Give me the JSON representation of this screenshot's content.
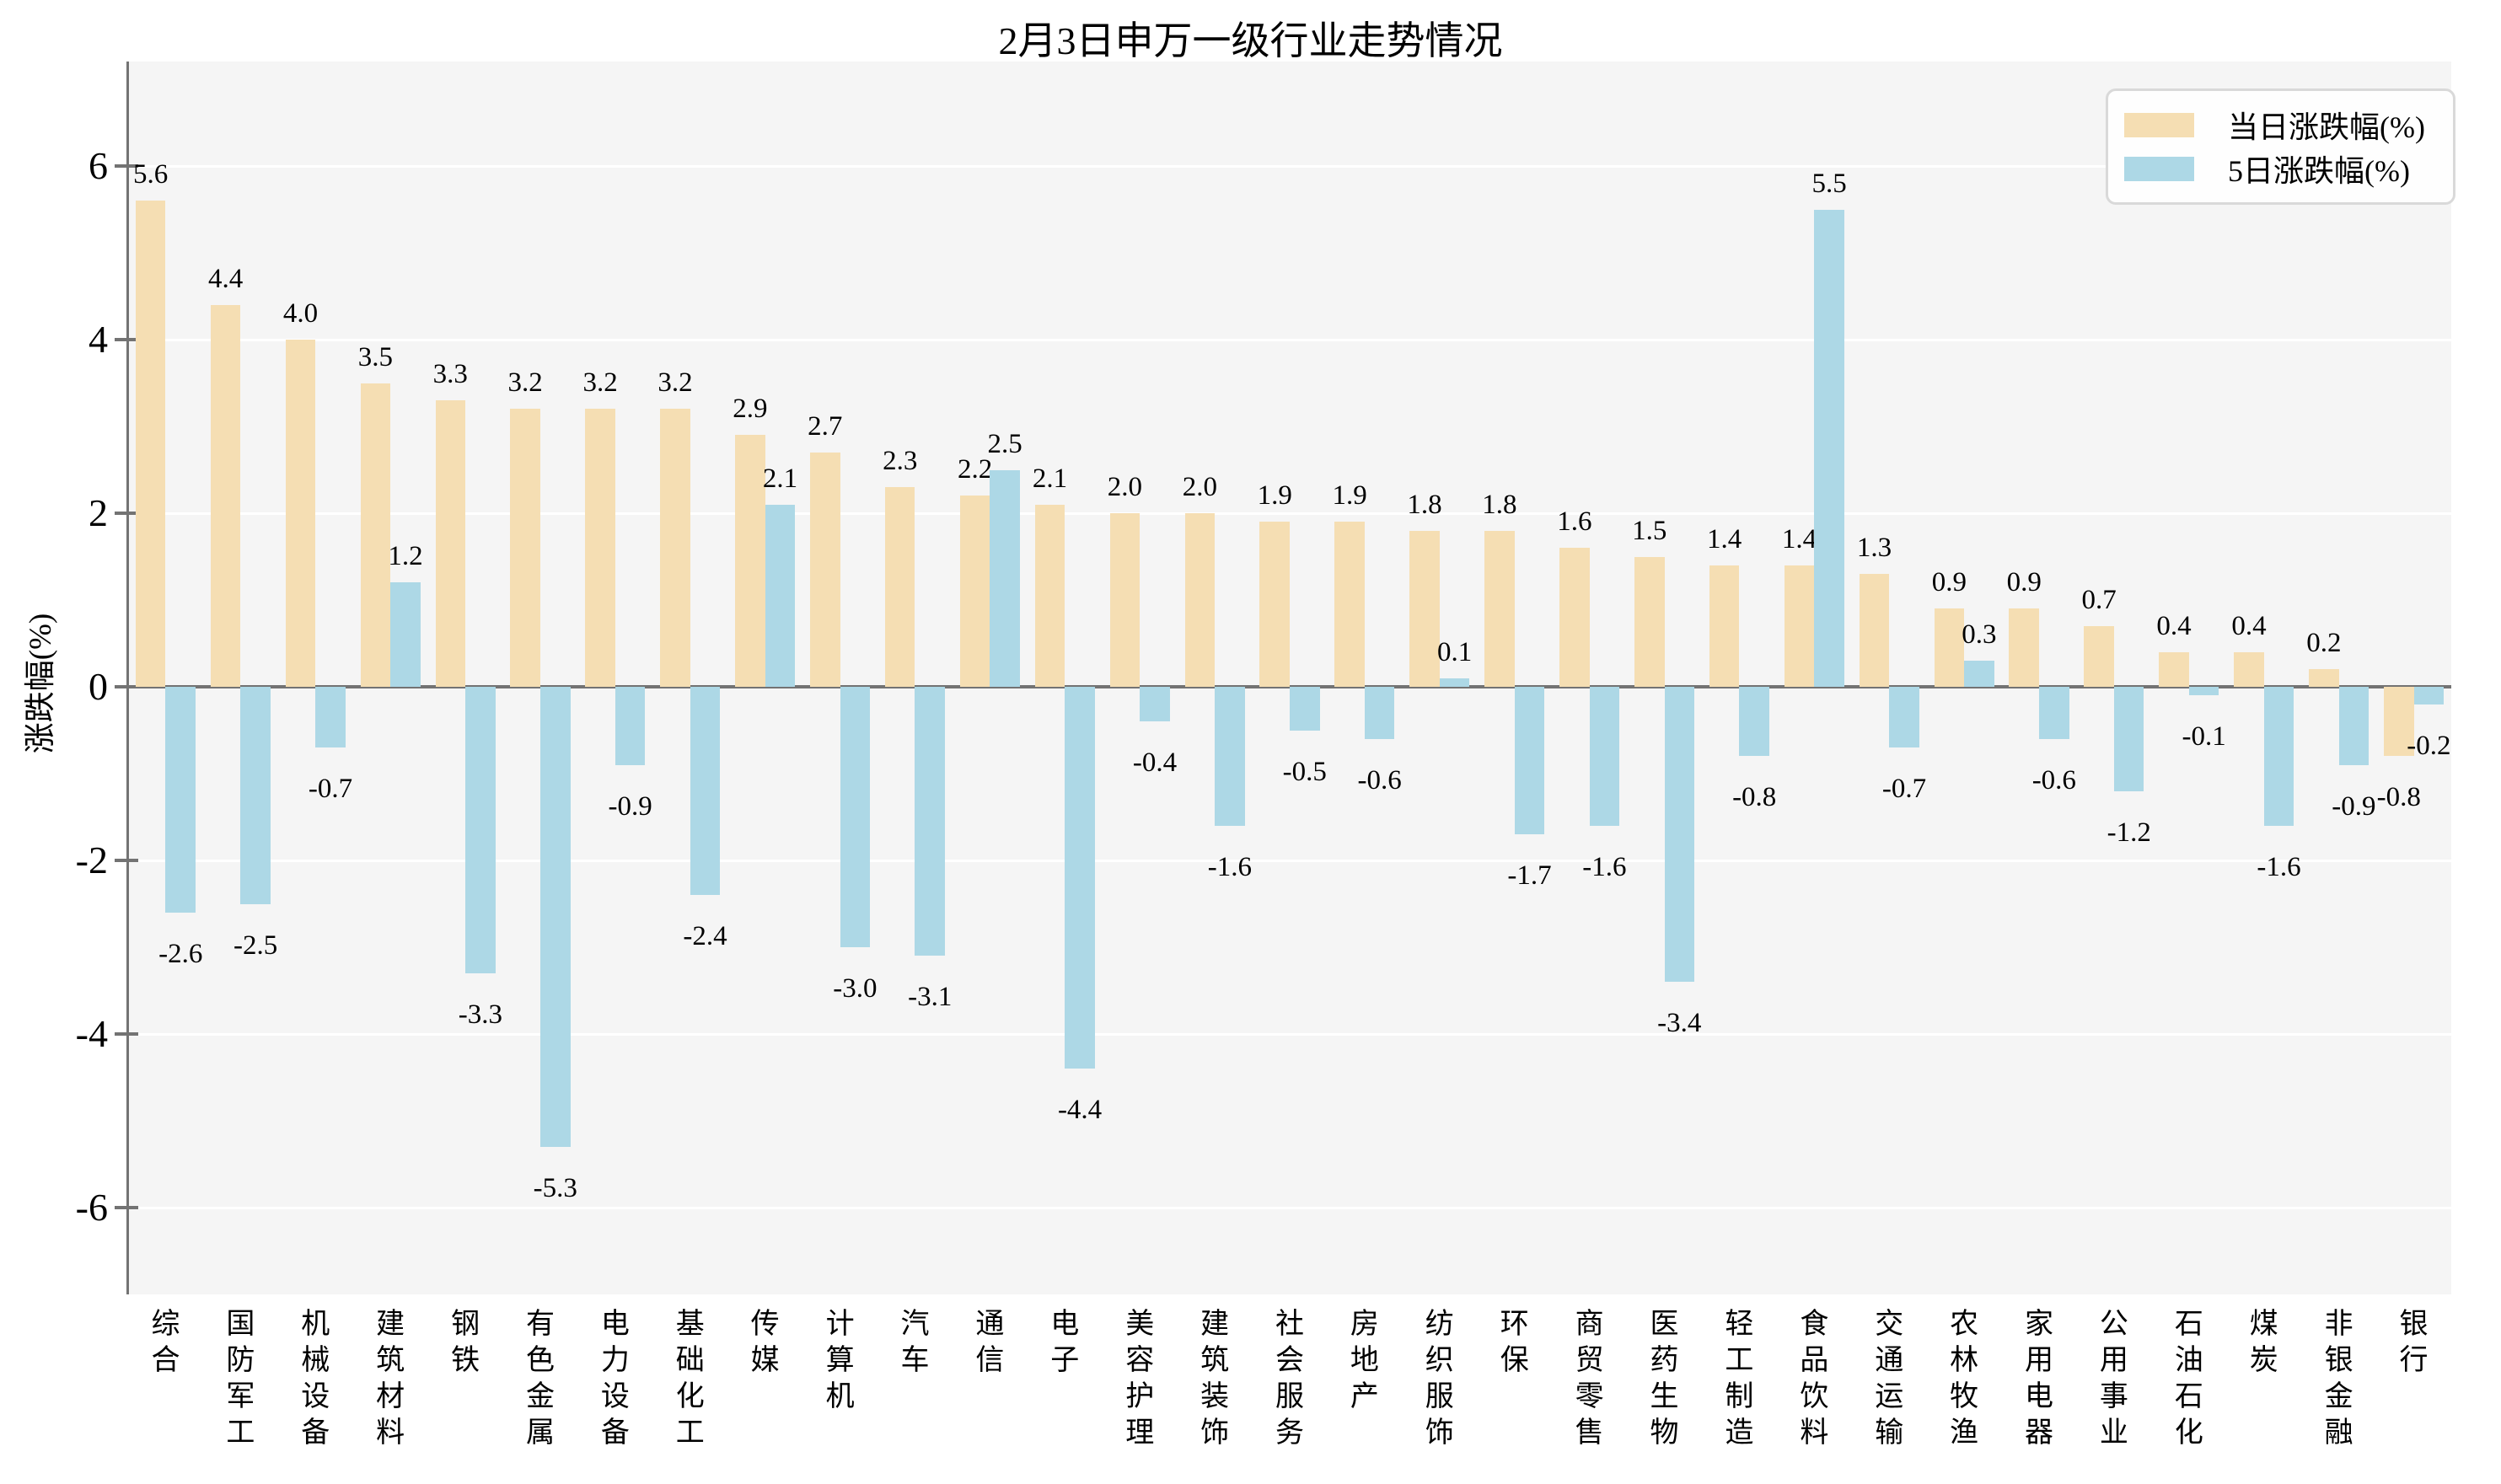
{
  "title": "2月3日申万一级行业走势情况",
  "chart_data": {
    "type": "bar",
    "title": "2月3日申万一级行业走势情况",
    "xlabel": "",
    "ylabel": "涨跌幅(%)",
    "categories": [
      "综合",
      "国防军工",
      "机械设备",
      "建筑材料",
      "钢铁",
      "有色金属",
      "电力设备",
      "基础化工",
      "传媒",
      "计算机",
      "汽车",
      "通信",
      "电子",
      "美容护理",
      "建筑装饰",
      "社会服务",
      "房地产",
      "纺织服饰",
      "环保",
      "商贸零售",
      "医药生物",
      "轻工制造",
      "食品饮料",
      "交通运输",
      "农林牧渔",
      "家用电器",
      "公用事业",
      "石油石化",
      "煤炭",
      "非银金融",
      "银行"
    ],
    "series": [
      {
        "name": "当日涨跌幅(%)",
        "color": "#F5DEB3",
        "values": [
          5.6,
          4.4,
          4.0,
          3.5,
          3.3,
          3.2,
          3.2,
          3.2,
          2.9,
          2.7,
          2.3,
          2.2,
          2.1,
          2.0,
          2.0,
          1.9,
          1.9,
          1.8,
          1.8,
          1.6,
          1.5,
          1.4,
          1.4,
          1.3,
          0.9,
          0.9,
          0.7,
          0.4,
          0.4,
          0.2,
          -0.8
        ]
      },
      {
        "name": "5日涨跌幅(%)",
        "color": "#ADD8E6",
        "values": [
          -2.6,
          -2.5,
          -0.7,
          1.2,
          -3.3,
          -5.3,
          -0.9,
          -2.4,
          2.1,
          -3.0,
          -3.1,
          2.5,
          -4.4,
          -0.4,
          -1.6,
          -0.5,
          -0.6,
          0.1,
          -1.7,
          -1.6,
          -3.4,
          -0.8,
          5.5,
          -0.7,
          0.3,
          -0.6,
          -1.2,
          -0.1,
          -1.6,
          -0.9,
          -0.2
        ]
      }
    ],
    "yticks": [
      6,
      4,
      2,
      0,
      -2,
      -4,
      -6
    ],
    "ylim": [
      -7.0,
      7.2
    ],
    "grid": true,
    "grid_color": "#FFFFFF",
    "legend_position": "upper right",
    "value_labels": true,
    "value_label_decimals": 1
  },
  "colors": {
    "plot_bg": "#F5F5F5",
    "figure_bg": "#FFFFFF",
    "axis": "#737373",
    "text": "#000000",
    "legend_bg": "#FEFEFE",
    "legend_border": "#D9D9D9"
  }
}
